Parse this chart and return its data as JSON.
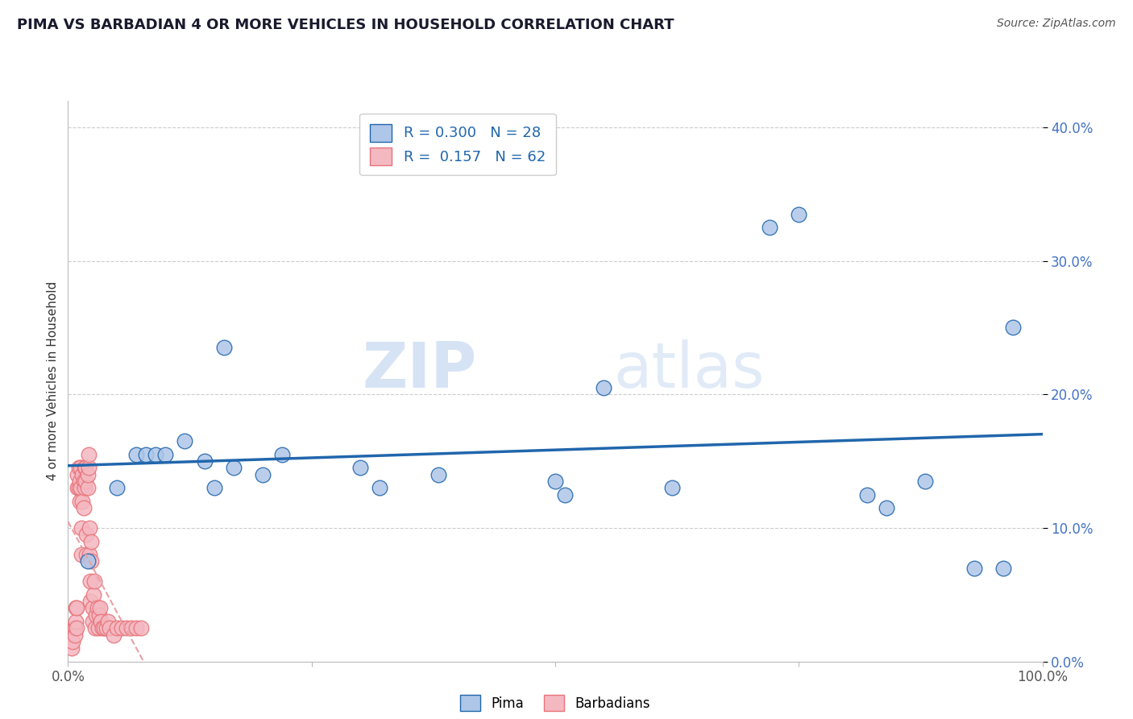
{
  "title": "PIMA VS BARBADIAN 4 OR MORE VEHICLES IN HOUSEHOLD CORRELATION CHART",
  "source": "Source: ZipAtlas.com",
  "ylabel": "4 or more Vehicles in Household",
  "xlim": [
    0.0,
    1.0
  ],
  "ylim": [
    0.0,
    0.42
  ],
  "xticks": [
    0.0,
    0.25,
    0.5,
    0.75,
    1.0
  ],
  "xtick_labels": [
    "0.0%",
    "",
    "",
    "",
    "100.0%"
  ],
  "ytick_vals": [
    0.0,
    0.1,
    0.2,
    0.3,
    0.4
  ],
  "ytick_labels_right": [
    "0.0%",
    "10.0%",
    "20.0%",
    "30.0%",
    "40.0%"
  ],
  "watermark_zip": "ZIP",
  "watermark_atlas": "atlas",
  "pima_color": "#aec6e8",
  "pima_edge_color": "#2166ac",
  "barbadian_color": "#f4b8c1",
  "barbadian_edge_color": "#e8737a",
  "pima_line_color": "#2166ac",
  "barbadian_line_color": "#e8a0a5",
  "background_color": "#ffffff",
  "grid_color": "#cccccc",
  "pima_x": [
    0.02,
    0.05,
    0.07,
    0.08,
    0.09,
    0.1,
    0.12,
    0.14,
    0.15,
    0.16,
    0.17,
    0.2,
    0.22,
    0.3,
    0.32,
    0.38,
    0.5,
    0.51,
    0.55,
    0.62,
    0.72,
    0.75,
    0.82,
    0.84,
    0.88,
    0.93,
    0.96,
    0.97
  ],
  "pima_y": [
    0.075,
    0.13,
    0.155,
    0.155,
    0.155,
    0.155,
    0.165,
    0.15,
    0.13,
    0.235,
    0.145,
    0.14,
    0.155,
    0.145,
    0.13,
    0.14,
    0.135,
    0.125,
    0.205,
    0.13,
    0.325,
    0.335,
    0.125,
    0.115,
    0.135,
    0.07,
    0.07,
    0.25
  ],
  "barbadian_x": [
    0.004,
    0.005,
    0.006,
    0.007,
    0.007,
    0.008,
    0.008,
    0.009,
    0.009,
    0.01,
    0.01,
    0.011,
    0.011,
    0.012,
    0.012,
    0.013,
    0.013,
    0.014,
    0.014,
    0.015,
    0.015,
    0.016,
    0.016,
    0.017,
    0.017,
    0.018,
    0.018,
    0.019,
    0.019,
    0.02,
    0.02,
    0.021,
    0.021,
    0.022,
    0.022,
    0.023,
    0.023,
    0.024,
    0.024,
    0.025,
    0.025,
    0.026,
    0.027,
    0.028,
    0.029,
    0.03,
    0.031,
    0.032,
    0.033,
    0.034,
    0.035,
    0.037,
    0.039,
    0.041,
    0.043,
    0.047,
    0.05,
    0.055,
    0.06,
    0.065,
    0.07,
    0.075
  ],
  "barbadian_y": [
    0.01,
    0.015,
    0.025,
    0.025,
    0.02,
    0.04,
    0.03,
    0.04,
    0.025,
    0.13,
    0.14,
    0.13,
    0.145,
    0.12,
    0.135,
    0.13,
    0.145,
    0.08,
    0.1,
    0.12,
    0.14,
    0.115,
    0.135,
    0.145,
    0.13,
    0.145,
    0.135,
    0.08,
    0.095,
    0.13,
    0.14,
    0.145,
    0.155,
    0.08,
    0.1,
    0.045,
    0.06,
    0.075,
    0.09,
    0.03,
    0.04,
    0.05,
    0.06,
    0.025,
    0.035,
    0.04,
    0.025,
    0.035,
    0.04,
    0.03,
    0.025,
    0.025,
    0.025,
    0.03,
    0.025,
    0.02,
    0.025,
    0.025,
    0.025,
    0.025,
    0.025,
    0.025
  ]
}
